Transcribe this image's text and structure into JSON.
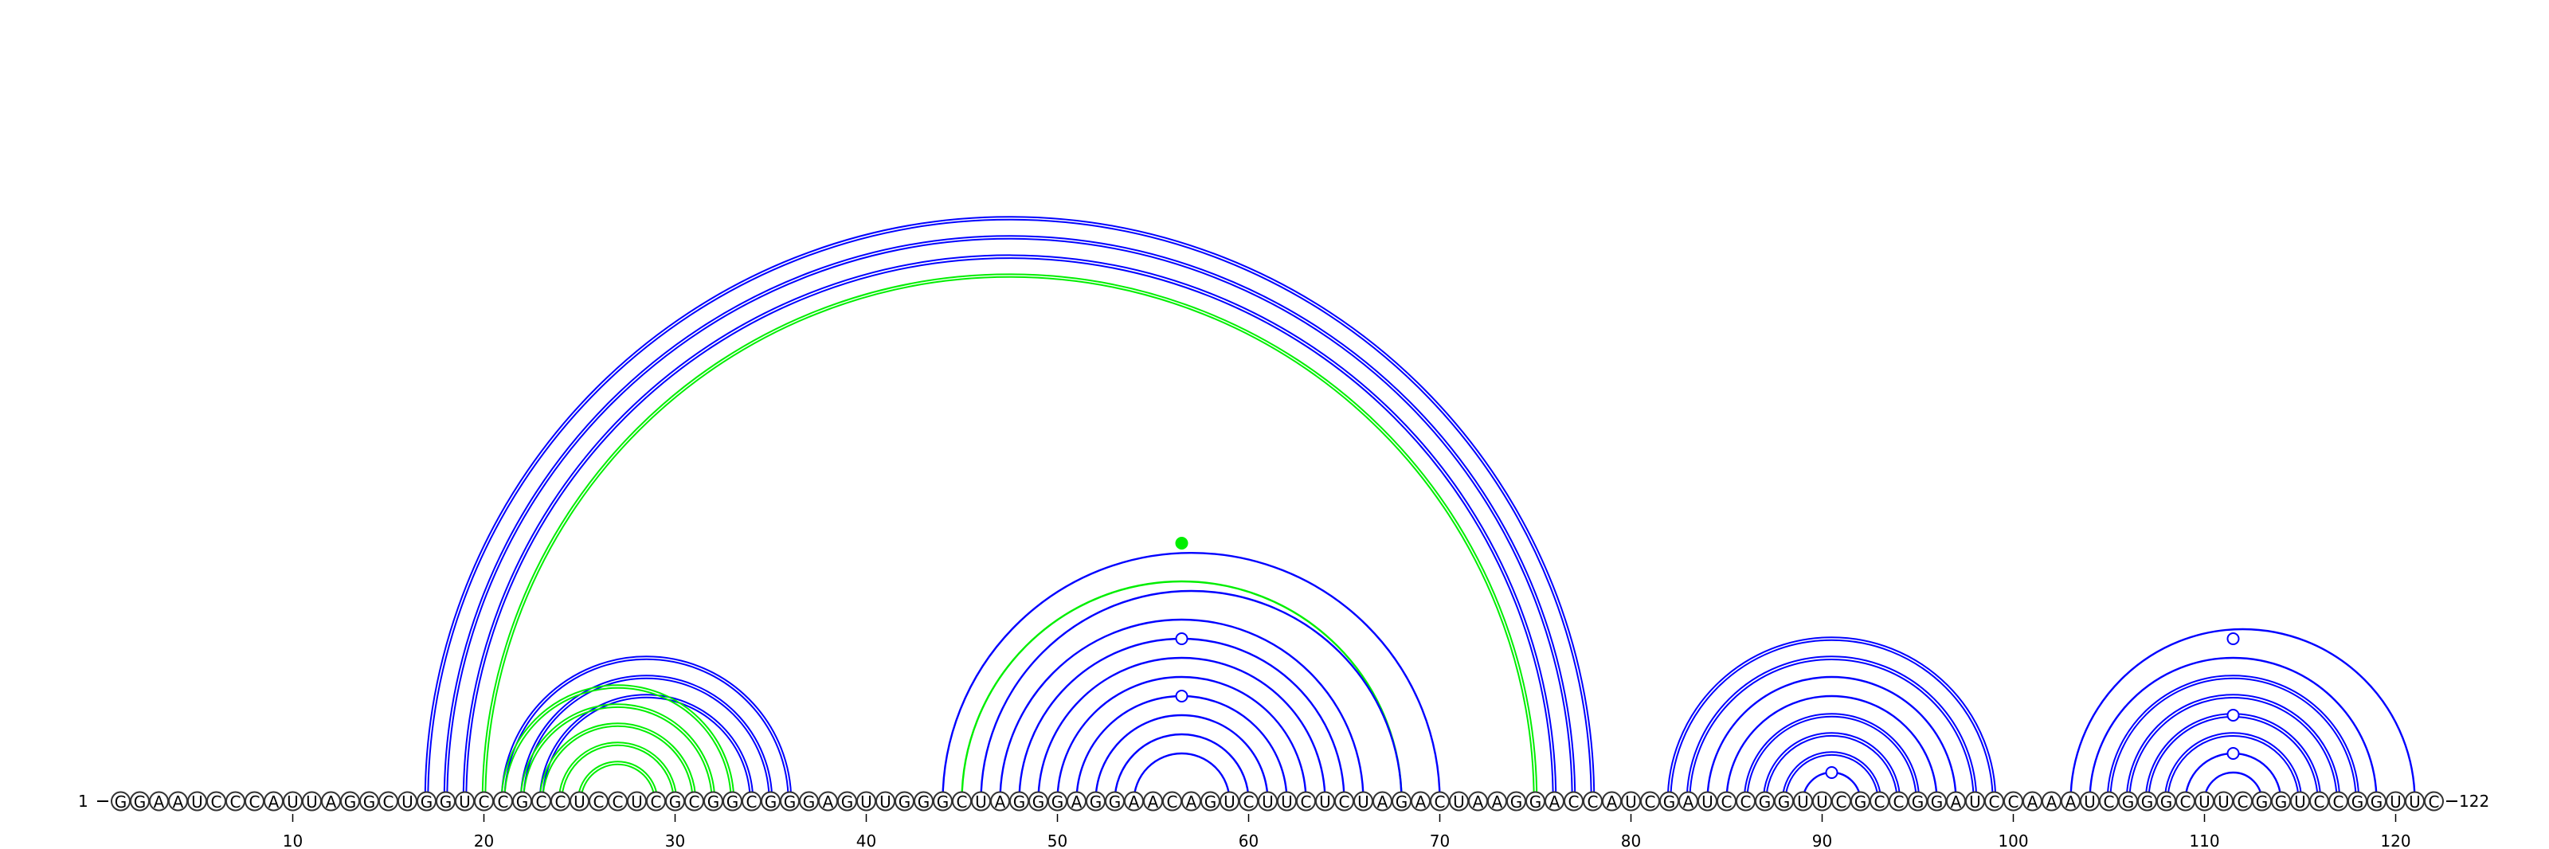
{
  "sequence": "GGAAUCCCAUUAGGCUGGUCCGCCUCCUCGCGGCGGGAGUUGGGCUAGGGAGGAACAGUCUUCUCUAGACUAAGGACCAUCGAUCCGGUUCGCCGGAUCCAAAUCGGGCUUCGGUCCGGUUC",
  "start_label": "1",
  "end_label": "122",
  "ticks": [
    {
      "pos": 10,
      "label": "10"
    },
    {
      "pos": 20,
      "label": "20"
    },
    {
      "pos": 30,
      "label": "30"
    },
    {
      "pos": 40,
      "label": "40"
    },
    {
      "pos": 50,
      "label": "50"
    },
    {
      "pos": 60,
      "label": "60"
    },
    {
      "pos": 70,
      "label": "70"
    },
    {
      "pos": 80,
      "label": "80"
    },
    {
      "pos": 90,
      "label": "90"
    },
    {
      "pos": 100,
      "label": "100"
    },
    {
      "pos": 110,
      "label": "110"
    },
    {
      "pos": 120,
      "label": "120"
    }
  ],
  "colors": {
    "blue": "#0000ff",
    "green": "#00ee00"
  },
  "arcs": [
    {
      "i": 17,
      "j": 78,
      "color": "blue",
      "double": true
    },
    {
      "i": 18,
      "j": 77,
      "color": "blue",
      "double": true
    },
    {
      "i": 19,
      "j": 76,
      "color": "blue",
      "double": true
    },
    {
      "i": 20,
      "j": 75,
      "color": "green",
      "double": true
    },
    {
      "i": 21,
      "j": 36,
      "color": "blue",
      "double": true
    },
    {
      "i": 22,
      "j": 35,
      "color": "blue",
      "double": true
    },
    {
      "i": 23,
      "j": 34,
      "color": "blue",
      "double": true
    },
    {
      "i": 21,
      "j": 33,
      "color": "green",
      "double": true
    },
    {
      "i": 22,
      "j": 32,
      "color": "green",
      "double": true
    },
    {
      "i": 23,
      "j": 31,
      "color": "green",
      "double": true
    },
    {
      "i": 24,
      "j": 30,
      "color": "green",
      "double": true
    },
    {
      "i": 25,
      "j": 29,
      "color": "green",
      "double": true
    },
    {
      "i": 44,
      "j": 70,
      "color": "blue",
      "double": false
    },
    {
      "i": 45,
      "j": 68,
      "color": "green",
      "double": false
    },
    {
      "i": 46,
      "j": 68,
      "color": "blue",
      "double": false
    },
    {
      "i": 47,
      "j": 66,
      "color": "blue",
      "double": false
    },
    {
      "i": 48,
      "j": 65,
      "color": "blue",
      "double": false
    },
    {
      "i": 49,
      "j": 64,
      "color": "blue",
      "double": false
    },
    {
      "i": 50,
      "j": 63,
      "color": "blue",
      "double": false
    },
    {
      "i": 51,
      "j": 62,
      "color": "blue",
      "double": false
    },
    {
      "i": 52,
      "j": 61,
      "color": "blue",
      "double": false
    },
    {
      "i": 53,
      "j": 60,
      "color": "blue",
      "double": false
    },
    {
      "i": 54,
      "j": 59,
      "color": "blue",
      "double": false
    },
    {
      "i": 82,
      "j": 99,
      "color": "blue",
      "double": true
    },
    {
      "i": 83,
      "j": 98,
      "color": "blue",
      "double": true
    },
    {
      "i": 84,
      "j": 97,
      "color": "blue",
      "double": false
    },
    {
      "i": 85,
      "j": 96,
      "color": "blue",
      "double": false
    },
    {
      "i": 86,
      "j": 95,
      "color": "blue",
      "double": true
    },
    {
      "i": 87,
      "j": 94,
      "color": "blue",
      "double": true
    },
    {
      "i": 88,
      "j": 93,
      "color": "blue",
      "double": true
    },
    {
      "i": 89,
      "j": 92,
      "color": "blue",
      "double": false
    },
    {
      "i": 103,
      "j": 121,
      "color": "blue",
      "double": false
    },
    {
      "i": 104,
      "j": 119,
      "color": "blue",
      "double": false
    },
    {
      "i": 105,
      "j": 118,
      "color": "blue",
      "double": true
    },
    {
      "i": 106,
      "j": 117,
      "color": "blue",
      "double": true
    },
    {
      "i": 107,
      "j": 116,
      "color": "blue",
      "double": true
    },
    {
      "i": 108,
      "j": 115,
      "color": "blue",
      "double": true
    },
    {
      "i": 109,
      "j": 114,
      "color": "blue",
      "double": false
    },
    {
      "i": 110,
      "j": 113,
      "color": "blue",
      "double": false
    }
  ],
  "markers": [
    {
      "center": 56.5,
      "radius_nt": 13.5,
      "color": "green",
      "filled": true
    },
    {
      "center": 56.5,
      "radius_nt": 8.5,
      "color": "blue",
      "filled": false
    },
    {
      "center": 56.5,
      "radius_nt": 5.5,
      "color": "blue",
      "filled": false
    },
    {
      "center": 90.5,
      "radius_nt": 1.5,
      "color": "blue",
      "filled": false
    },
    {
      "center": 111.5,
      "radius_nt": 8.5,
      "color": "blue",
      "filled": false
    },
    {
      "center": 111.5,
      "radius_nt": 4.5,
      "color": "blue",
      "filled": false
    },
    {
      "center": 111.5,
      "radius_nt": 2.5,
      "color": "blue",
      "filled": false
    }
  ]
}
